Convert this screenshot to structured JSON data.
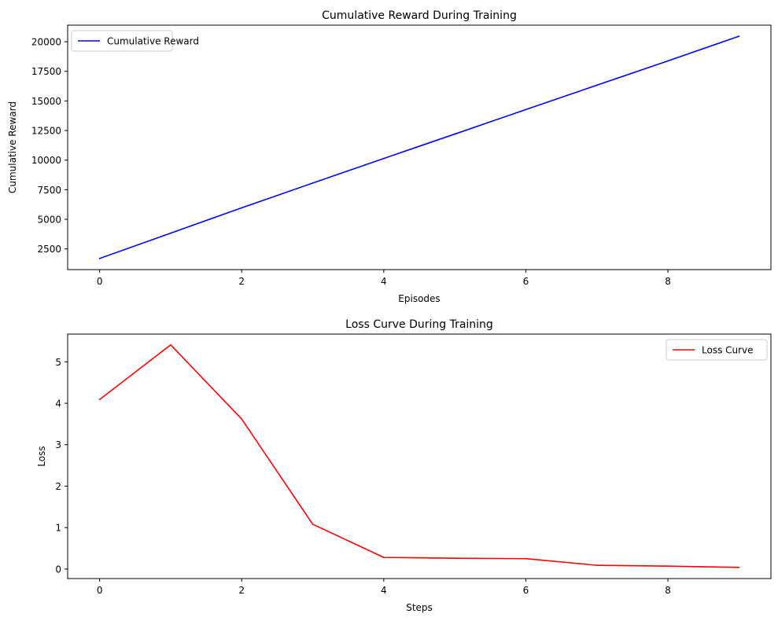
{
  "chart_data": [
    {
      "type": "line",
      "title": "Cumulative Reward During Training",
      "xlabel": "Episodes",
      "ylabel": "Cumulative Reward",
      "xlim": [
        -0.45,
        9.45
      ],
      "ylim": [
        750,
        21400
      ],
      "xticks": [
        0,
        2,
        4,
        6,
        8
      ],
      "yticks": [
        2500,
        5000,
        7500,
        10000,
        12500,
        15000,
        17500,
        20000
      ],
      "grid": false,
      "legend": "upper left",
      "series": [
        {
          "name": "Cumulative Reward",
          "color": "#0000ff",
          "x": [
            0,
            1,
            2,
            3,
            4,
            5,
            6,
            7,
            8,
            9
          ],
          "values": [
            1690,
            3830,
            5970,
            8060,
            10140,
            12200,
            14270,
            16330,
            18380,
            20460
          ]
        }
      ]
    },
    {
      "type": "line",
      "title": "Loss Curve During Training",
      "xlabel": "Steps",
      "ylabel": "Loss",
      "xlim": [
        -0.45,
        9.45
      ],
      "ylim": [
        -0.23,
        5.67
      ],
      "xticks": [
        0,
        2,
        4,
        6,
        8
      ],
      "yticks": [
        0,
        1,
        2,
        3,
        4,
        5
      ],
      "grid": false,
      "legend": "upper right",
      "series": [
        {
          "name": "Loss Curve",
          "color": "#ff0000",
          "x": [
            0,
            1,
            2,
            3,
            4,
            5,
            6,
            7,
            8,
            9
          ],
          "values": [
            4.09,
            5.41,
            3.62,
            1.08,
            0.28,
            0.26,
            0.25,
            0.09,
            0.07,
            0.04
          ]
        }
      ]
    }
  ]
}
